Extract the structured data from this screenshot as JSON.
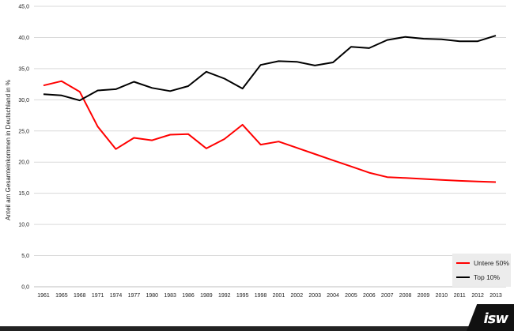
{
  "chart_data": {
    "type": "line",
    "ylabel": "Anteil am Gesamteinkommen in Deutschland in %",
    "ylim": [
      0,
      45
    ],
    "yticks": [
      "0,0",
      "5,0",
      "10,0",
      "15,0",
      "20,0",
      "25,0",
      "30,0",
      "35,0",
      "40,0",
      "45,0"
    ],
    "categories": [
      "1961",
      "1965",
      "1968",
      "1971",
      "1974",
      "1977",
      "1980",
      "1983",
      "1986",
      "1989",
      "1992",
      "1995",
      "1998",
      "2001",
      "2002",
      "2003",
      "2004",
      "2005",
      "2006",
      "2007",
      "2008",
      "2009",
      "2010",
      "2011",
      "2012",
      "2013"
    ],
    "grid": true,
    "legend_position": "bottom-right",
    "series": [
      {
        "name": "Untere 50%",
        "color": "#ff0000",
        "values": [
          32.3,
          33.0,
          31.3,
          25.7,
          22.1,
          23.9,
          23.5,
          24.4,
          24.5,
          22.2,
          23.7,
          26.0,
          22.8,
          23.3,
          22.3,
          21.3,
          20.3,
          19.3,
          18.3,
          17.6,
          17.45,
          17.3,
          17.15,
          17.0,
          16.9,
          16.8
        ]
      },
      {
        "name": "Top 10%",
        "color": "#000000",
        "values": [
          30.9,
          30.7,
          29.9,
          31.5,
          31.7,
          32.9,
          31.9,
          31.4,
          32.2,
          34.5,
          33.4,
          31.8,
          35.6,
          36.2,
          36.1,
          35.5,
          36.0,
          38.5,
          38.3,
          39.6,
          40.1,
          39.8,
          39.7,
          39.4,
          39.4,
          40.3
        ]
      }
    ]
  },
  "logo": {
    "text": "isw",
    "accent": "#e2001a"
  }
}
